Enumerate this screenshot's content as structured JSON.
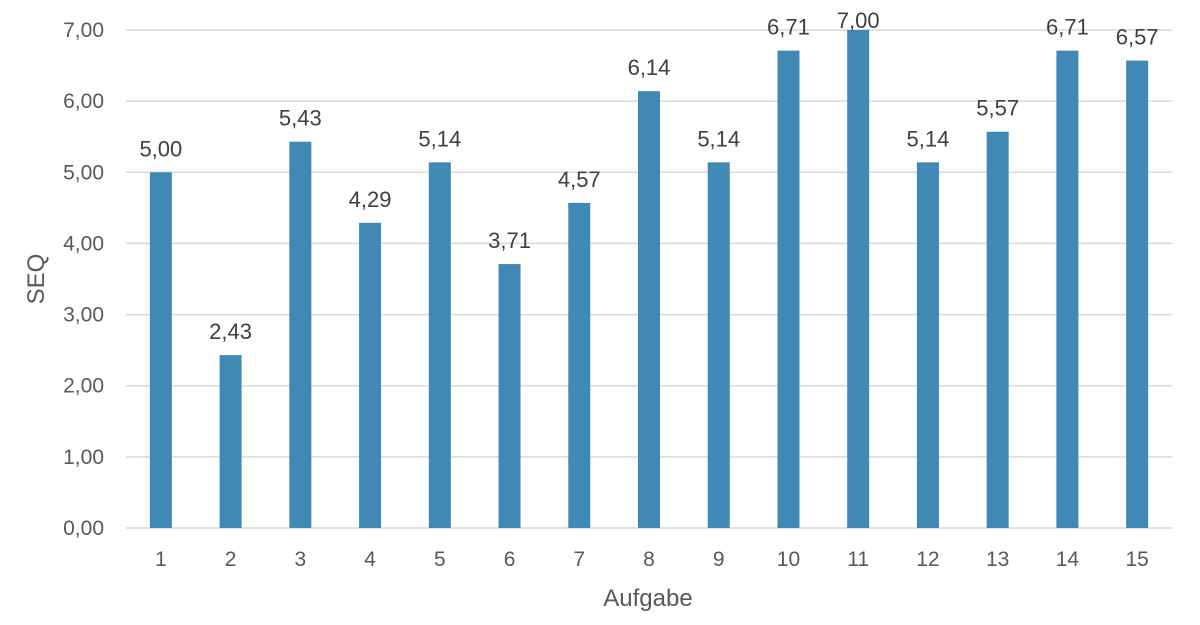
{
  "chart_data": {
    "type": "bar",
    "title": "",
    "xlabel": "Aufgabe",
    "ylabel": "SEQ",
    "categories": [
      "1",
      "2",
      "3",
      "4",
      "5",
      "6",
      "7",
      "8",
      "9",
      "10",
      "11",
      "12",
      "13",
      "14",
      "15"
    ],
    "values": [
      5.0,
      2.43,
      5.43,
      4.29,
      5.14,
      3.71,
      4.57,
      6.14,
      5.14,
      6.71,
      7.0,
      5.14,
      5.57,
      6.71,
      6.57
    ],
    "value_labels": [
      "5,00",
      "2,43",
      "5,43",
      "4,29",
      "5,14",
      "3,71",
      "4,57",
      "6,14",
      "5,14",
      "6,71",
      "7,00",
      "5,14",
      "5,57",
      "6,71",
      "6,57"
    ],
    "y_ticks": [
      0,
      1,
      2,
      3,
      4,
      5,
      6,
      7
    ],
    "y_tick_labels": [
      "0,00",
      "1,00",
      "2,00",
      "3,00",
      "4,00",
      "5,00",
      "6,00",
      "7,00"
    ],
    "ylim": [
      0,
      7
    ],
    "grid": true,
    "legend": "none",
    "colors": {
      "bar": "#3F89B4",
      "grid": "#D9D9D9",
      "text": "#595959"
    }
  }
}
